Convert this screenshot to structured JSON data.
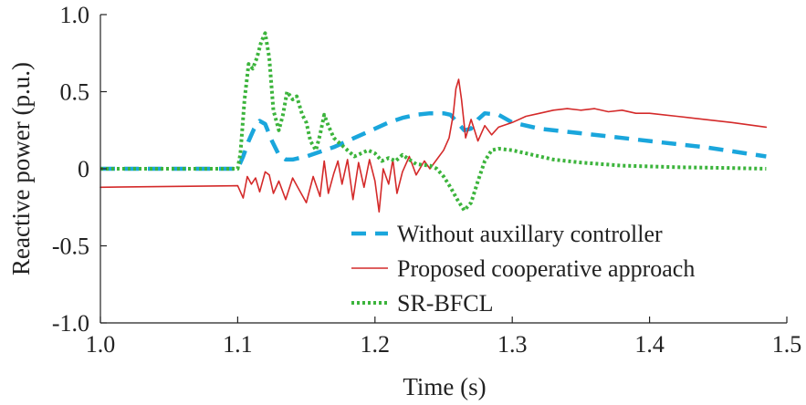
{
  "chart_data": {
    "type": "line",
    "xlabel": "Time (s)",
    "ylabel": "Reactive power (p.u.)",
    "xlim": [
      1.0,
      1.5
    ],
    "ylim": [
      -1.0,
      1.0
    ],
    "x_ticks": [
      1.0,
      1.1,
      1.2,
      1.3,
      1.4,
      1.5
    ],
    "x_tick_labels": [
      "1.0",
      "1.1",
      "1.2",
      "1.3",
      "1.4",
      "1.5"
    ],
    "y_ticks": [
      1.0,
      0.5,
      0.0,
      -0.5,
      -1.0
    ],
    "y_tick_labels": [
      "1.0",
      "0.5",
      "0",
      "-0.5",
      "-1.0"
    ],
    "grid": false,
    "legend_position": "bottom-right",
    "series": [
      {
        "name": "Without auxillary controller",
        "color": "#1aa6dc",
        "dash": "dashed",
        "points": [
          [
            1.0,
            0.0
          ],
          [
            1.1,
            0.0
          ],
          [
            1.104,
            0.08
          ],
          [
            1.108,
            0.18
          ],
          [
            1.112,
            0.26
          ],
          [
            1.116,
            0.31
          ],
          [
            1.12,
            0.29
          ],
          [
            1.125,
            0.18
          ],
          [
            1.13,
            0.09
          ],
          [
            1.135,
            0.06
          ],
          [
            1.14,
            0.06
          ],
          [
            1.15,
            0.08
          ],
          [
            1.16,
            0.11
          ],
          [
            1.17,
            0.14
          ],
          [
            1.18,
            0.18
          ],
          [
            1.19,
            0.22
          ],
          [
            1.2,
            0.26
          ],
          [
            1.21,
            0.3
          ],
          [
            1.22,
            0.33
          ],
          [
            1.23,
            0.35
          ],
          [
            1.24,
            0.36
          ],
          [
            1.25,
            0.36
          ],
          [
            1.255,
            0.35
          ],
          [
            1.26,
            0.3
          ],
          [
            1.265,
            0.25
          ],
          [
            1.27,
            0.26
          ],
          [
            1.275,
            0.32
          ],
          [
            1.28,
            0.36
          ],
          [
            1.29,
            0.35
          ],
          [
            1.3,
            0.3
          ],
          [
            1.32,
            0.26
          ],
          [
            1.35,
            0.23
          ],
          [
            1.38,
            0.2
          ],
          [
            1.41,
            0.17
          ],
          [
            1.44,
            0.14
          ],
          [
            1.47,
            0.1
          ],
          [
            1.485,
            0.08
          ]
        ]
      },
      {
        "name": "Proposed cooperative approach",
        "color": "#d42a2a",
        "dash": "solid",
        "points": [
          [
            1.0,
            -0.12
          ],
          [
            1.05,
            -0.115
          ],
          [
            1.1,
            -0.11
          ],
          [
            1.102,
            -0.15
          ],
          [
            1.104,
            -0.19
          ],
          [
            1.107,
            -0.05
          ],
          [
            1.11,
            -0.1
          ],
          [
            1.113,
            -0.06
          ],
          [
            1.116,
            -0.15
          ],
          [
            1.12,
            -0.02
          ],
          [
            1.123,
            -0.04
          ],
          [
            1.126,
            -0.16
          ],
          [
            1.13,
            -0.08
          ],
          [
            1.135,
            -0.2
          ],
          [
            1.14,
            -0.06
          ],
          [
            1.145,
            -0.14
          ],
          [
            1.15,
            -0.22
          ],
          [
            1.155,
            -0.05
          ],
          [
            1.16,
            -0.18
          ],
          [
            1.163,
            0.05
          ],
          [
            1.166,
            -0.16
          ],
          [
            1.17,
            -0.03
          ],
          [
            1.173,
            0.05
          ],
          [
            1.176,
            -0.1
          ],
          [
            1.18,
            0.06
          ],
          [
            1.184,
            -0.2
          ],
          [
            1.188,
            0.04
          ],
          [
            1.192,
            -0.12
          ],
          [
            1.196,
            0.06
          ],
          [
            1.2,
            -0.08
          ],
          [
            1.203,
            -0.28
          ],
          [
            1.206,
            0.0
          ],
          [
            1.21,
            -0.1
          ],
          [
            1.213,
            0.06
          ],
          [
            1.216,
            -0.16
          ],
          [
            1.22,
            -0.02
          ],
          [
            1.225,
            0.08
          ],
          [
            1.23,
            -0.04
          ],
          [
            1.236,
            0.05
          ],
          [
            1.24,
            0.0
          ],
          [
            1.245,
            0.06
          ],
          [
            1.25,
            0.12
          ],
          [
            1.254,
            0.2
          ],
          [
            1.257,
            0.35
          ],
          [
            1.259,
            0.52
          ],
          [
            1.261,
            0.58
          ],
          [
            1.263,
            0.45
          ],
          [
            1.266,
            0.2
          ],
          [
            1.27,
            0.32
          ],
          [
            1.275,
            0.18
          ],
          [
            1.28,
            0.28
          ],
          [
            1.285,
            0.22
          ],
          [
            1.29,
            0.27
          ],
          [
            1.3,
            0.3
          ],
          [
            1.31,
            0.34
          ],
          [
            1.32,
            0.36
          ],
          [
            1.33,
            0.38
          ],
          [
            1.34,
            0.39
          ],
          [
            1.35,
            0.38
          ],
          [
            1.36,
            0.39
          ],
          [
            1.37,
            0.37
          ],
          [
            1.38,
            0.38
          ],
          [
            1.39,
            0.36
          ],
          [
            1.4,
            0.36
          ],
          [
            1.42,
            0.34
          ],
          [
            1.44,
            0.32
          ],
          [
            1.46,
            0.3
          ],
          [
            1.485,
            0.27
          ]
        ]
      },
      {
        "name": "SR-BFCL",
        "color": "#3cb43c",
        "dash": "dotted",
        "points": [
          [
            1.0,
            0.0
          ],
          [
            1.1,
            0.0
          ],
          [
            1.102,
            0.1
          ],
          [
            1.105,
            0.45
          ],
          [
            1.108,
            0.68
          ],
          [
            1.111,
            0.65
          ],
          [
            1.114,
            0.72
          ],
          [
            1.117,
            0.82
          ],
          [
            1.12,
            0.88
          ],
          [
            1.123,
            0.72
          ],
          [
            1.126,
            0.38
          ],
          [
            1.13,
            0.25
          ],
          [
            1.133,
            0.35
          ],
          [
            1.136,
            0.5
          ],
          [
            1.14,
            0.45
          ],
          [
            1.143,
            0.47
          ],
          [
            1.147,
            0.35
          ],
          [
            1.15,
            0.3
          ],
          [
            1.153,
            0.18
          ],
          [
            1.157,
            0.12
          ],
          [
            1.16,
            0.22
          ],
          [
            1.163,
            0.35
          ],
          [
            1.166,
            0.28
          ],
          [
            1.17,
            0.2
          ],
          [
            1.175,
            0.16
          ],
          [
            1.18,
            0.12
          ],
          [
            1.185,
            0.08
          ],
          [
            1.19,
            0.1
          ],
          [
            1.195,
            0.12
          ],
          [
            1.2,
            0.1
          ],
          [
            1.205,
            0.05
          ],
          [
            1.21,
            0.07
          ],
          [
            1.215,
            0.05
          ],
          [
            1.22,
            0.09
          ],
          [
            1.225,
            0.06
          ],
          [
            1.23,
            0.03
          ],
          [
            1.24,
            0.02
          ],
          [
            1.245,
            0.0
          ],
          [
            1.25,
            -0.05
          ],
          [
            1.255,
            -0.12
          ],
          [
            1.26,
            -0.2
          ],
          [
            1.265,
            -0.27
          ],
          [
            1.27,
            -0.22
          ],
          [
            1.275,
            -0.08
          ],
          [
            1.28,
            0.05
          ],
          [
            1.285,
            0.12
          ],
          [
            1.29,
            0.13
          ],
          [
            1.3,
            0.12
          ],
          [
            1.31,
            0.1
          ],
          [
            1.32,
            0.08
          ],
          [
            1.33,
            0.06
          ],
          [
            1.35,
            0.04
          ],
          [
            1.38,
            0.02
          ],
          [
            1.42,
            0.01
          ],
          [
            1.46,
            0.005
          ],
          [
            1.485,
            0.0
          ]
        ]
      }
    ]
  }
}
